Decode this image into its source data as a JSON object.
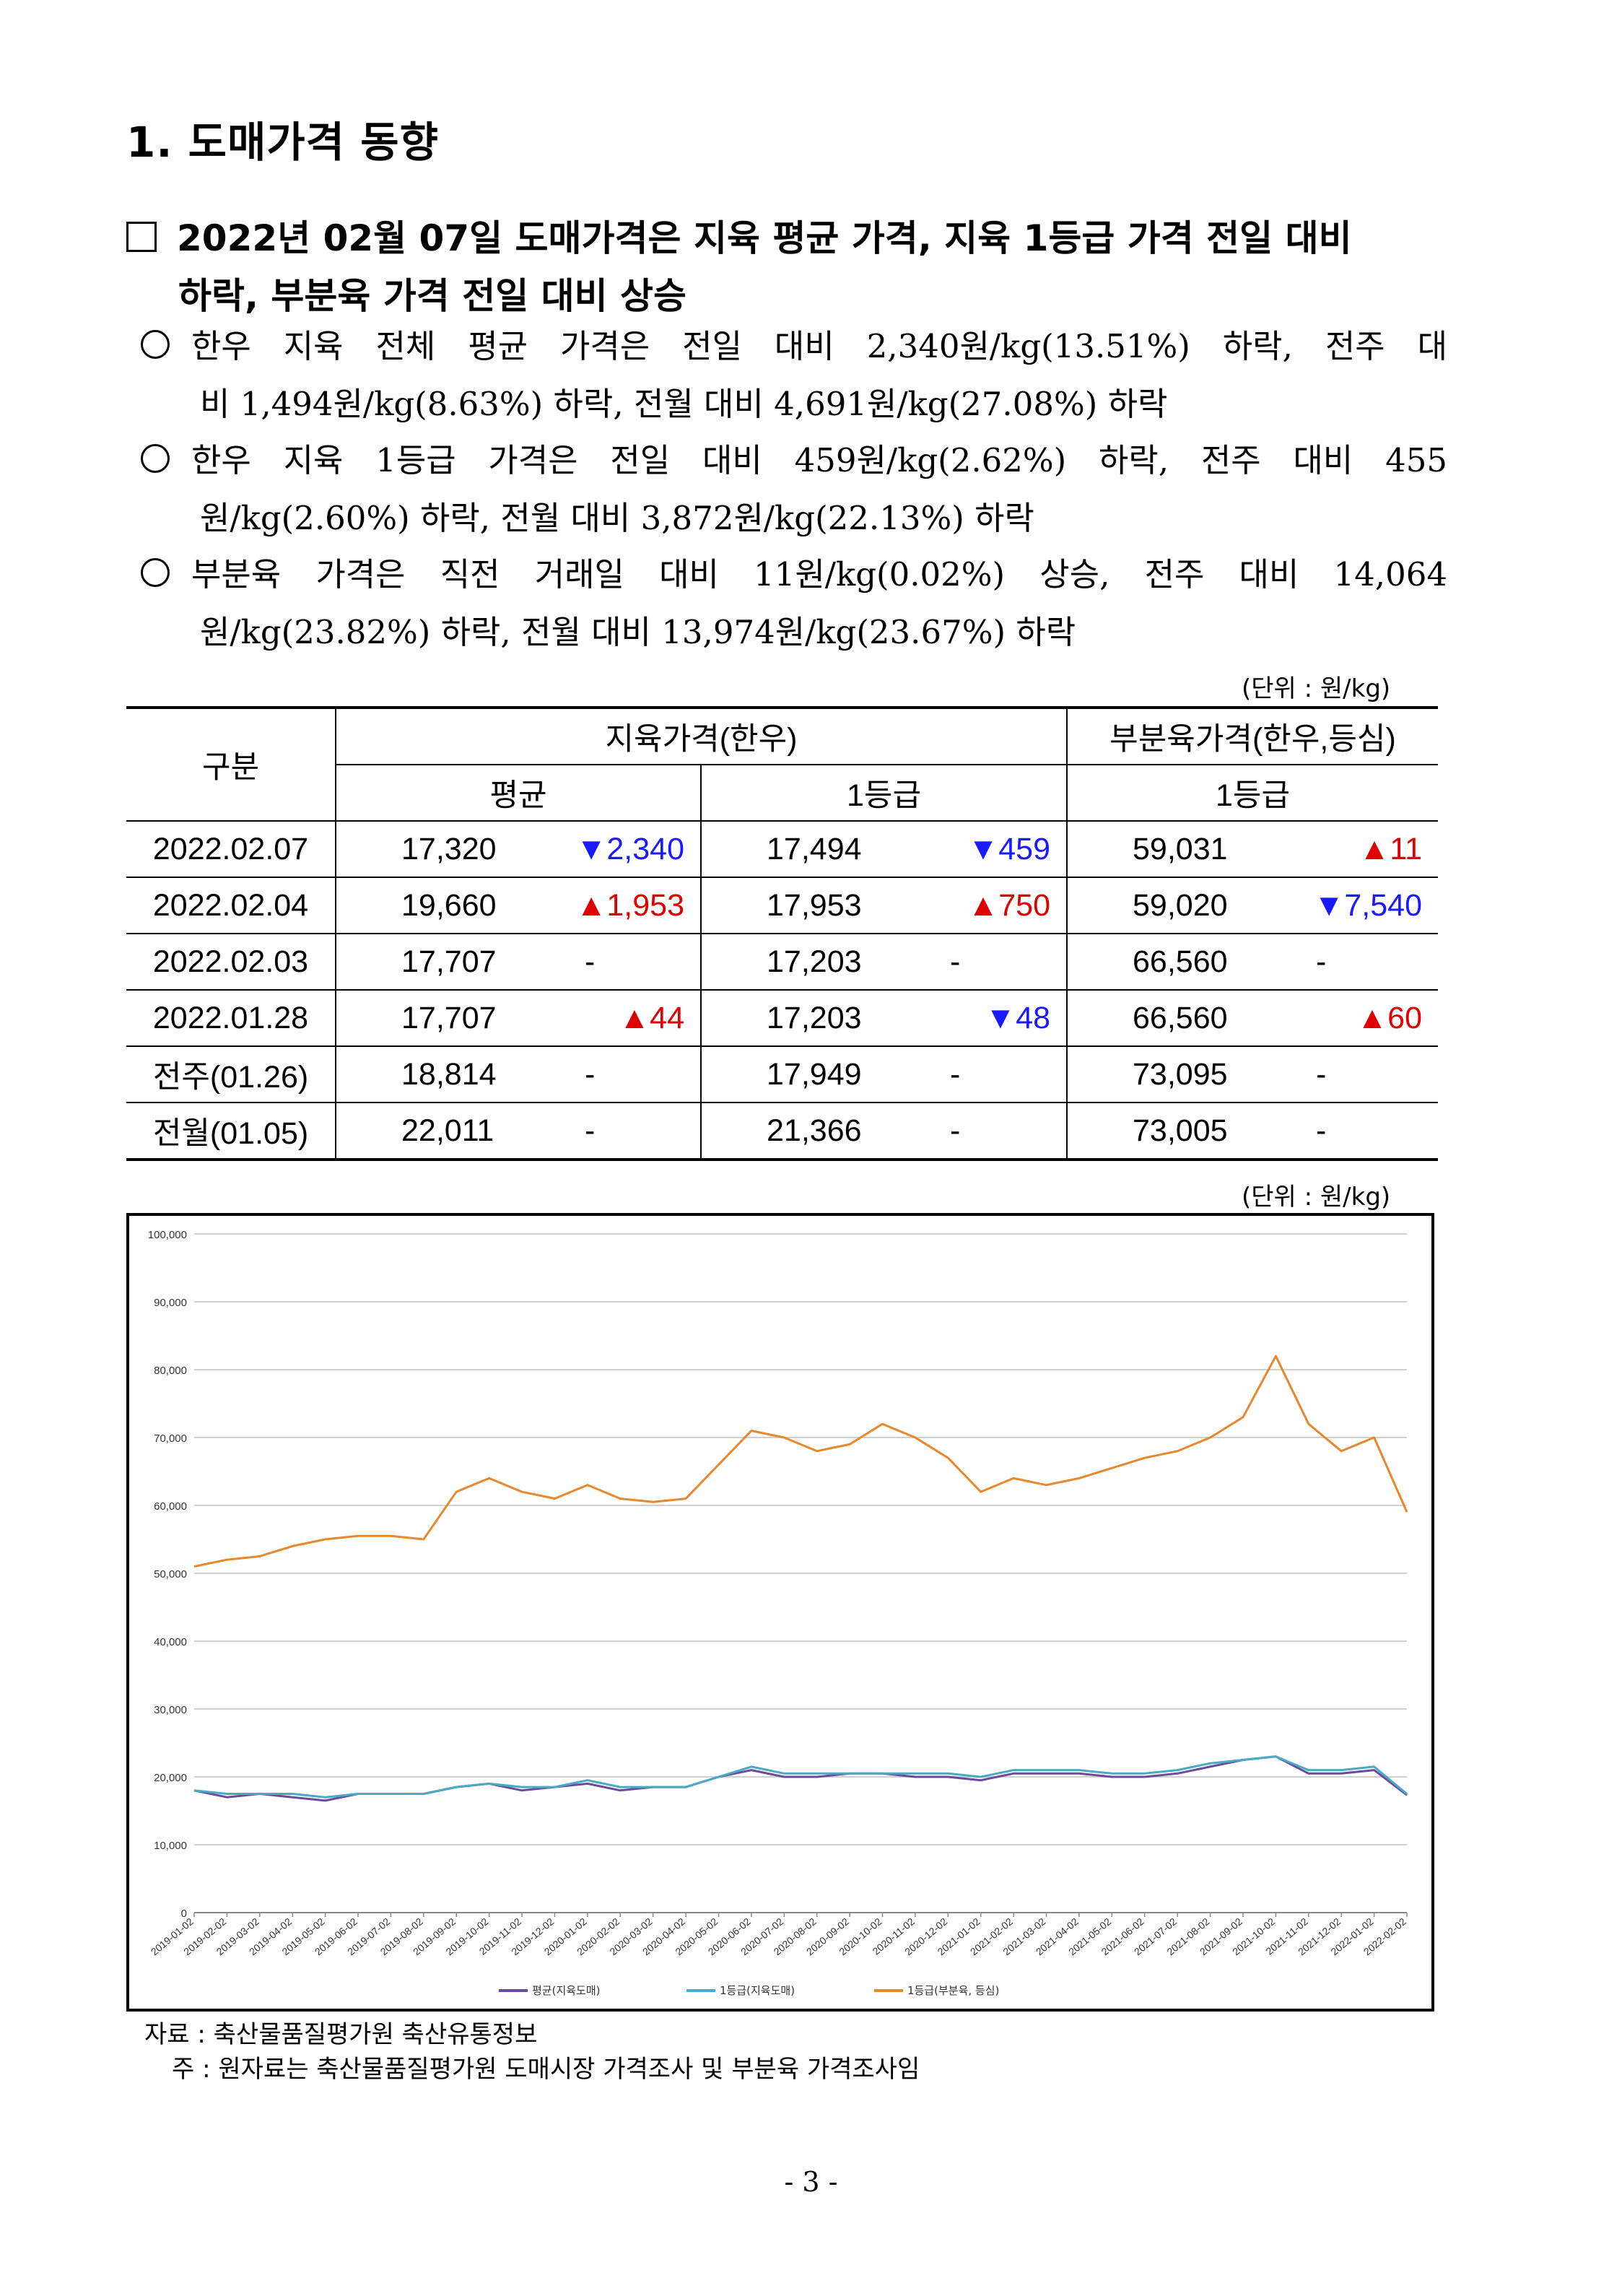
{
  "heading": "1. 도매가격 동향",
  "summary": {
    "line1": "2022년 02월 07일 도매가격은 지육 평균 가격, 지육 1등급 가격 전일 대비",
    "line2": "하락, 부분육 가격 전일 대비 상승"
  },
  "bullets": [
    {
      "line1": "한우 지육 전체 평균 가격은 전일 대비 2,340원/kg(13.51%) 하락, 전주 대",
      "line2": "비 1,494원/kg(8.63%) 하락, 전월 대비 4,691원/kg(27.08%) 하락"
    },
    {
      "line1": "한우 지육 1등급 가격은 전일 대비 459원/kg(2.62%) 하락, 전주 대비 455",
      "line2": "원/kg(2.60%) 하락, 전월 대비 3,872원/kg(22.13%) 하락"
    },
    {
      "line1": "부분육 가격은 직전 거래일 대비 11원/kg(0.02%) 상승, 전주 대비 14,064",
      "line2": "원/kg(23.82%) 하락, 전월 대비 13,974원/kg(23.67%) 하락"
    }
  ],
  "unit_label": "(단위 : 원/kg)",
  "table": {
    "h_category": "구분",
    "h_carcass": "지육가격(한우)",
    "h_cut": "부분육가격(한우,등심)",
    "h_avg": "평균",
    "h_grade1": "1등급",
    "h_grade1b": "1등급",
    "rows": [
      {
        "date": "2022.02.07",
        "avg": "17,320",
        "avg_chg": "▼2,340",
        "g1": "17,494",
        "g1_chg": "▼459",
        "cut": "59,031",
        "cut_chg": "▲11"
      },
      {
        "date": "2022.02.04",
        "avg": "19,660",
        "avg_chg": "▲1,953",
        "g1": "17,953",
        "g1_chg": "▲750",
        "cut": "59,020",
        "cut_chg": "▼7,540"
      },
      {
        "date": "2022.02.03",
        "avg": "17,707",
        "avg_chg": "-",
        "g1": "17,203",
        "g1_chg": "-",
        "cut": "66,560",
        "cut_chg": "-"
      },
      {
        "date": "2022.01.28",
        "avg": "17,707",
        "avg_chg": "▲44",
        "g1": "17,203",
        "g1_chg": "▼48",
        "cut": "66,560",
        "cut_chg": "▲60"
      },
      {
        "date": "전주(01.26)",
        "avg": "18,814",
        "avg_chg": "-",
        "g1": "17,949",
        "g1_chg": "-",
        "cut": "73,095",
        "cut_chg": "-"
      },
      {
        "date": "전월(01.05)",
        "avg": "22,011",
        "avg_chg": "-",
        "g1": "21,366",
        "g1_chg": "-",
        "cut": "73,005",
        "cut_chg": "-"
      }
    ]
  },
  "chart_data": {
    "type": "line",
    "ylim": [
      0,
      100000
    ],
    "yticks": [
      "0",
      "10,000",
      "20,000",
      "30,000",
      "40,000",
      "50,000",
      "60,000",
      "70,000",
      "80,000",
      "90,000",
      "100,000"
    ],
    "x": [
      "2019-01-02",
      "2019-02-02",
      "2019-03-02",
      "2019-04-02",
      "2019-05-02",
      "2019-06-02",
      "2019-07-02",
      "2019-08-02",
      "2019-09-02",
      "2019-10-02",
      "2019-11-02",
      "2019-12-02",
      "2020-01-02",
      "2020-02-02",
      "2020-03-02",
      "2020-04-02",
      "2020-05-02",
      "2020-06-02",
      "2020-07-02",
      "2020-08-02",
      "2020-09-02",
      "2020-10-02",
      "2020-11-02",
      "2020-12-02",
      "2021-01-02",
      "2021-02-02",
      "2021-03-02",
      "2021-04-02",
      "2021-05-02",
      "2021-06-02",
      "2021-07-02",
      "2021-08-02",
      "2021-09-02",
      "2021-10-02",
      "2021-11-02",
      "2021-12-02",
      "2022-01-02",
      "2022-02-02"
    ],
    "grid": true,
    "legend_position": "bottom",
    "series": [
      {
        "name": "평균(지육도매)",
        "color": "#6a4c9c",
        "values": [
          18000,
          17000,
          17500,
          17000,
          16500,
          17500,
          17500,
          17500,
          18500,
          19000,
          18000,
          18500,
          19000,
          18000,
          18500,
          18500,
          20000,
          21000,
          20000,
          20000,
          20500,
          20500,
          20000,
          20000,
          19500,
          20500,
          20500,
          20500,
          20000,
          20000,
          20500,
          21500,
          22500,
          23000,
          20500,
          20500,
          21000,
          17320
        ]
      },
      {
        "name": "1등급(지육도매)",
        "color": "#4aaac6",
        "values": [
          18000,
          17500,
          17500,
          17500,
          17000,
          17500,
          17500,
          17500,
          18500,
          19000,
          18500,
          18500,
          19500,
          18500,
          18500,
          18500,
          20000,
          21500,
          20500,
          20500,
          20500,
          20500,
          20500,
          20500,
          20000,
          21000,
          21000,
          21000,
          20500,
          20500,
          21000,
          22000,
          22500,
          23000,
          21000,
          21000,
          21500,
          17494
        ]
      },
      {
        "name": "1등급(부분육, 등심)",
        "color": "#e8882c",
        "values": [
          51000,
          52000,
          52500,
          54000,
          55000,
          55500,
          55500,
          55000,
          62000,
          64000,
          62000,
          61000,
          63000,
          61000,
          60500,
          61000,
          66000,
          71000,
          70000,
          68000,
          69000,
          72000,
          70000,
          67000,
          62000,
          64000,
          63000,
          64000,
          65500,
          67000,
          68000,
          70000,
          73000,
          82000,
          72000,
          68000,
          70000,
          59031
        ]
      }
    ]
  },
  "source_note": "자료 : 축산물품질평가원 축산유통정보",
  "footnote": "주 : 원자료는 축산물품질평가원 도매시장 가격조사 및 부분육 가격조사임",
  "page_number": "- 3 -"
}
